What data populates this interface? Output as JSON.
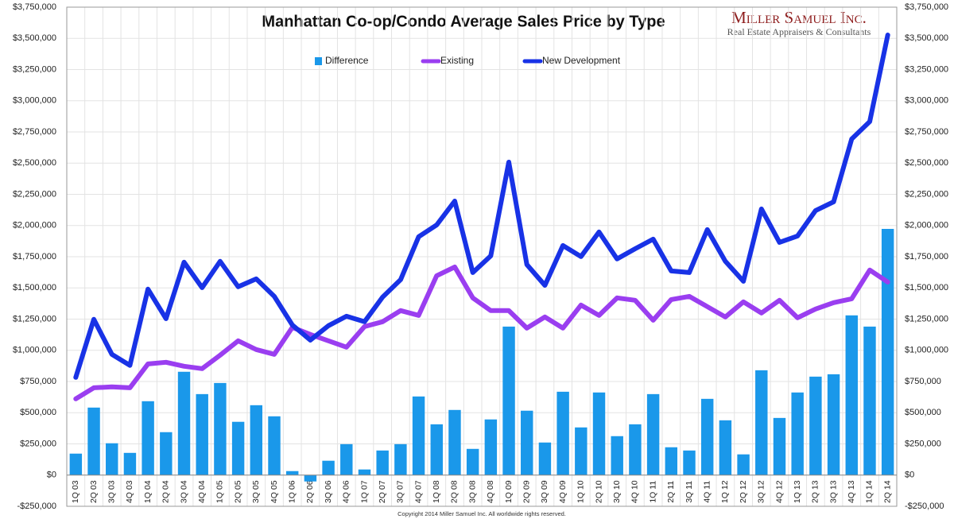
{
  "chart_data": {
    "type": "bar_line",
    "title": "Manhattan Co-op/Condo Average Sales Price by Type",
    "brand": "Miller Samuel Inc.",
    "brand_subtitle": "Real Estate Appraisers & Consultants",
    "footer": "Copyright 2014 Miller Samuel Inc.  All worldwide rights reserved.",
    "categories": [
      "1Q 03",
      "2Q 03",
      "3Q 03",
      "4Q 03",
      "1Q 04",
      "2Q 04",
      "3Q 04",
      "4Q 04",
      "1Q 05",
      "2Q 05",
      "3Q 05",
      "4Q 05",
      "1Q 06",
      "2Q 06",
      "3Q 06",
      "4Q 06",
      "1Q 07",
      "2Q 07",
      "3Q 07",
      "4Q 07",
      "1Q 08",
      "2Q 08",
      "3Q 08",
      "4Q 08",
      "1Q 09",
      "2Q 09",
      "3Q 09",
      "4Q 09",
      "1Q 10",
      "2Q 10",
      "3Q 10",
      "4Q 10",
      "1Q 11",
      "2Q 11",
      "3Q 11",
      "4Q 11",
      "1Q 12",
      "2Q 12",
      "3Q 12",
      "4Q 12",
      "1Q 13",
      "2Q 13",
      "3Q 13",
      "4Q 13",
      "1Q 14",
      "2Q 14"
    ],
    "series": [
      {
        "name": "Difference",
        "kind": "bar",
        "color": "#1a98ea",
        "values": [
          172000,
          541000,
          255000,
          178000,
          592000,
          344000,
          828000,
          649000,
          738000,
          427000,
          560000,
          471000,
          32000,
          -51000,
          115000,
          248000,
          45000,
          197000,
          248000,
          630000,
          407000,
          522000,
          210000,
          446000,
          1190000,
          516000,
          261000,
          668000,
          382000,
          662000,
          312000,
          407000,
          649000,
          223000,
          197000,
          611000,
          439000,
          166000,
          840000,
          458000,
          662000,
          789000,
          808000,
          1280000,
          1190000,
          1973000
        ]
      },
      {
        "name": "Existing",
        "kind": "line",
        "color": "#9a3ef0",
        "values": [
          611000,
          700000,
          707000,
          700000,
          891000,
          904000,
          872000,
          853000,
          961000,
          1076000,
          1006000,
          968000,
          1184000,
          1127000,
          1076000,
          1025000,
          1190000,
          1229000,
          1318000,
          1280000,
          1598000,
          1668000,
          1420000,
          1318000,
          1318000,
          1178000,
          1267000,
          1178000,
          1362000,
          1280000,
          1420000,
          1401000,
          1241000,
          1407000,
          1432000,
          1350000,
          1267000,
          1388000,
          1299000,
          1401000,
          1261000,
          1331000,
          1382000,
          1413000,
          1643000,
          1547000
        ]
      },
      {
        "name": "New Development",
        "kind": "line",
        "color": "#1832e6",
        "values": [
          783000,
          1248000,
          968000,
          879000,
          1490000,
          1254000,
          1706000,
          1502000,
          1713000,
          1509000,
          1572000,
          1432000,
          1203000,
          1082000,
          1197000,
          1273000,
          1229000,
          1426000,
          1566000,
          1910000,
          2005000,
          2196000,
          1623000,
          1757000,
          2508000,
          1687000,
          1521000,
          1840000,
          1751000,
          1948000,
          1732000,
          1814000,
          1891000,
          1636000,
          1623000,
          1967000,
          1713000,
          1553000,
          2133000,
          1865000,
          1916000,
          2120000,
          2190000,
          2693000,
          2833000,
          3527000
        ]
      }
    ],
    "ylim": [
      -250000,
      3750000
    ],
    "yticks": [
      {
        "value": -250000,
        "label": "-$250,000"
      },
      {
        "value": 0,
        "label": "$0"
      },
      {
        "value": 250000,
        "label": "$250,000"
      },
      {
        "value": 500000,
        "label": "$500,000"
      },
      {
        "value": 750000,
        "label": "$750,000"
      },
      {
        "value": 1000000,
        "label": "$1,000,000"
      },
      {
        "value": 1250000,
        "label": "$1,250,000"
      },
      {
        "value": 1500000,
        "label": "$1,500,000"
      },
      {
        "value": 1750000,
        "label": "$1,750,000"
      },
      {
        "value": 2000000,
        "label": "$2,000,000"
      },
      {
        "value": 2250000,
        "label": "$2,250,000"
      },
      {
        "value": 2500000,
        "label": "$2,500,000"
      },
      {
        "value": 2750000,
        "label": "$2,750,000"
      },
      {
        "value": 3000000,
        "label": "$3,000,000"
      },
      {
        "value": 3250000,
        "label": "$3,250,000"
      },
      {
        "value": 3500000,
        "label": "$3,500,000"
      },
      {
        "value": 3750000,
        "label": "$3,750,000"
      }
    ],
    "y2lim": [
      -250000,
      3750000
    ],
    "y2ticks": [
      {
        "value": -250000,
        "label": "-$250,000"
      },
      {
        "value": 0,
        "label": "$0"
      },
      {
        "value": 250000,
        "label": "$250,000"
      },
      {
        "value": 500000,
        "label": "$500,000"
      },
      {
        "value": 750000,
        "label": "$750,000"
      },
      {
        "value": 1000000,
        "label": "$1,000,000"
      },
      {
        "value": 1250000,
        "label": "$1,250,000"
      },
      {
        "value": 1500000,
        "label": "$1,500,000"
      },
      {
        "value": 1750000,
        "label": "$1,750,000"
      },
      {
        "value": 2000000,
        "label": "$2,000,000"
      },
      {
        "value": 2250000,
        "label": "$2,250,000"
      },
      {
        "value": 2500000,
        "label": "$2,500,000"
      },
      {
        "value": 2750000,
        "label": "$2,750,000"
      },
      {
        "value": 3000000,
        "label": "$3,000,000"
      },
      {
        "value": 3250000,
        "label": "$3,250,000"
      },
      {
        "value": 3500000,
        "label": "$3,500,000"
      },
      {
        "value": 3750000,
        "label": "$3,750,000"
      }
    ],
    "grid": true,
    "legend": "top"
  }
}
